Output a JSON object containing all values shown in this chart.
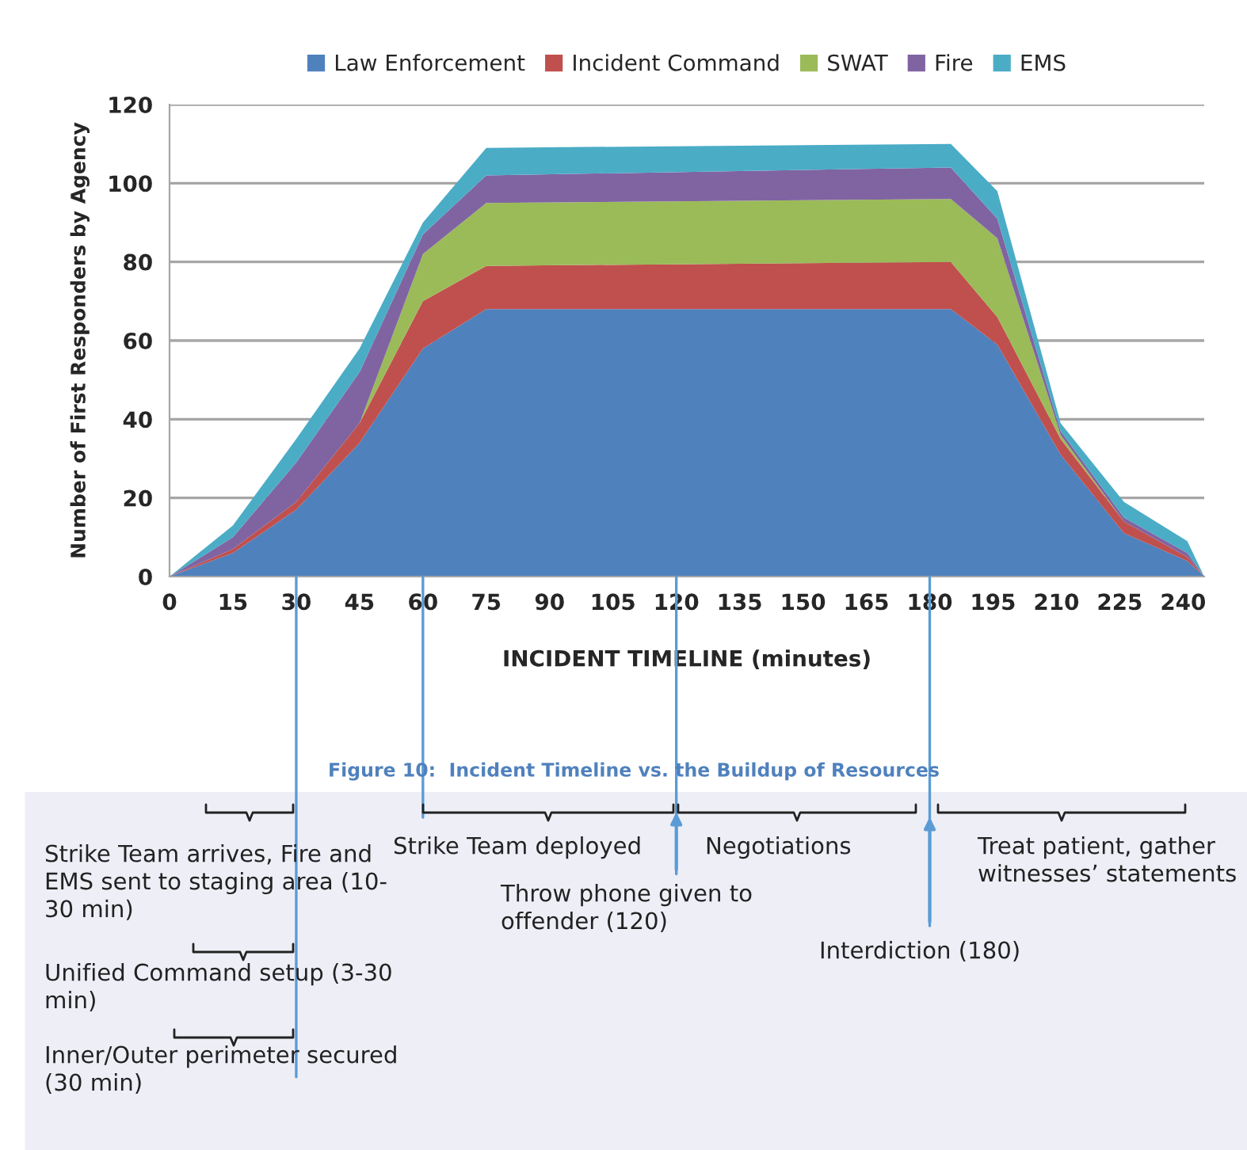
{
  "chart_data": {
    "type": "area",
    "stacked": true,
    "xlabel": "INCIDENT TIMELINE (minutes)",
    "ylabel": "Number of First Responders by Agency",
    "x": [
      0,
      15,
      30,
      45,
      60,
      75,
      185,
      196,
      211,
      226,
      241,
      245
    ],
    "series": [
      {
        "name": "Law Enforcement",
        "color": "#4f81bd",
        "values": [
          0,
          6,
          17,
          34,
          58,
          68,
          68,
          59,
          31,
          11,
          4,
          0
        ]
      },
      {
        "name": "Incident Command",
        "color": "#c0504d",
        "values": [
          0,
          1,
          2,
          5,
          12,
          11,
          12,
          7,
          4,
          3,
          1,
          0
        ]
      },
      {
        "name": "SWAT",
        "color": "#9bbb59",
        "values": [
          0,
          0,
          0,
          0,
          12,
          16,
          16,
          20,
          1,
          0,
          0,
          0
        ]
      },
      {
        "name": "Fire",
        "color": "#8064a2",
        "values": [
          0,
          3,
          10,
          13,
          5,
          7,
          8,
          5,
          1,
          1,
          1,
          0
        ]
      },
      {
        "name": "EMS",
        "color": "#4bacc6",
        "values": [
          0,
          3,
          6,
          6,
          3,
          7,
          6,
          7,
          2,
          4,
          3,
          0
        ]
      }
    ],
    "xlim": [
      0,
      245
    ],
    "xticks": [
      0,
      15,
      30,
      45,
      60,
      75,
      90,
      105,
      120,
      135,
      150,
      165,
      180,
      195,
      210,
      225,
      240
    ],
    "ylim": [
      0,
      120
    ],
    "yticks": [
      0,
      20,
      40,
      60,
      80,
      100,
      120
    ],
    "grid": "y",
    "legend": "top",
    "annotations": [
      "Figure 10:  Incident Timeline vs. the Buildup of Resources",
      "Strike Team arrives, Fire and\nEMS sent to staging area (10-\n30 min)",
      "Unified Command setup (3-30\nmin)",
      {
        "text": "Inner/Outer perimeter secured\n(30 min)",
        "x": 30,
        "y": 0
      },
      {
        "text": "Strike Team deployed",
        "x": 60,
        "y": 0
      },
      {
        "text": "Throw phone given to\noffender (120)",
        "x": 120,
        "y": 0
      },
      "Negotiations",
      {
        "text": "Interdiction (180)",
        "x": 180,
        "y": 0
      },
      "Treat patient, gather\nwitnesses’ statements"
    ]
  }
}
